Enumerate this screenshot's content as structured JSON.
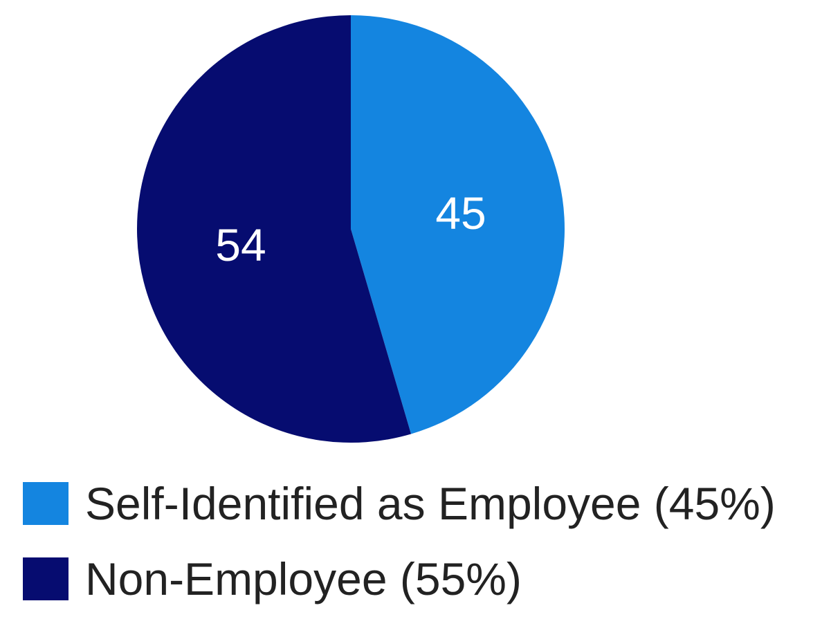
{
  "chart_data": {
    "type": "pie",
    "slices": [
      {
        "label": "Self-Identified as Employee (45%)",
        "value": 45,
        "data_label": "45",
        "color": "#1485e0"
      },
      {
        "label": "Non-Employee (55%)",
        "value": 54,
        "data_label": "54",
        "color": "#060c70"
      }
    ],
    "start_angle_deg": 0,
    "direction": "clockwise",
    "legend_position": "bottom-left"
  }
}
